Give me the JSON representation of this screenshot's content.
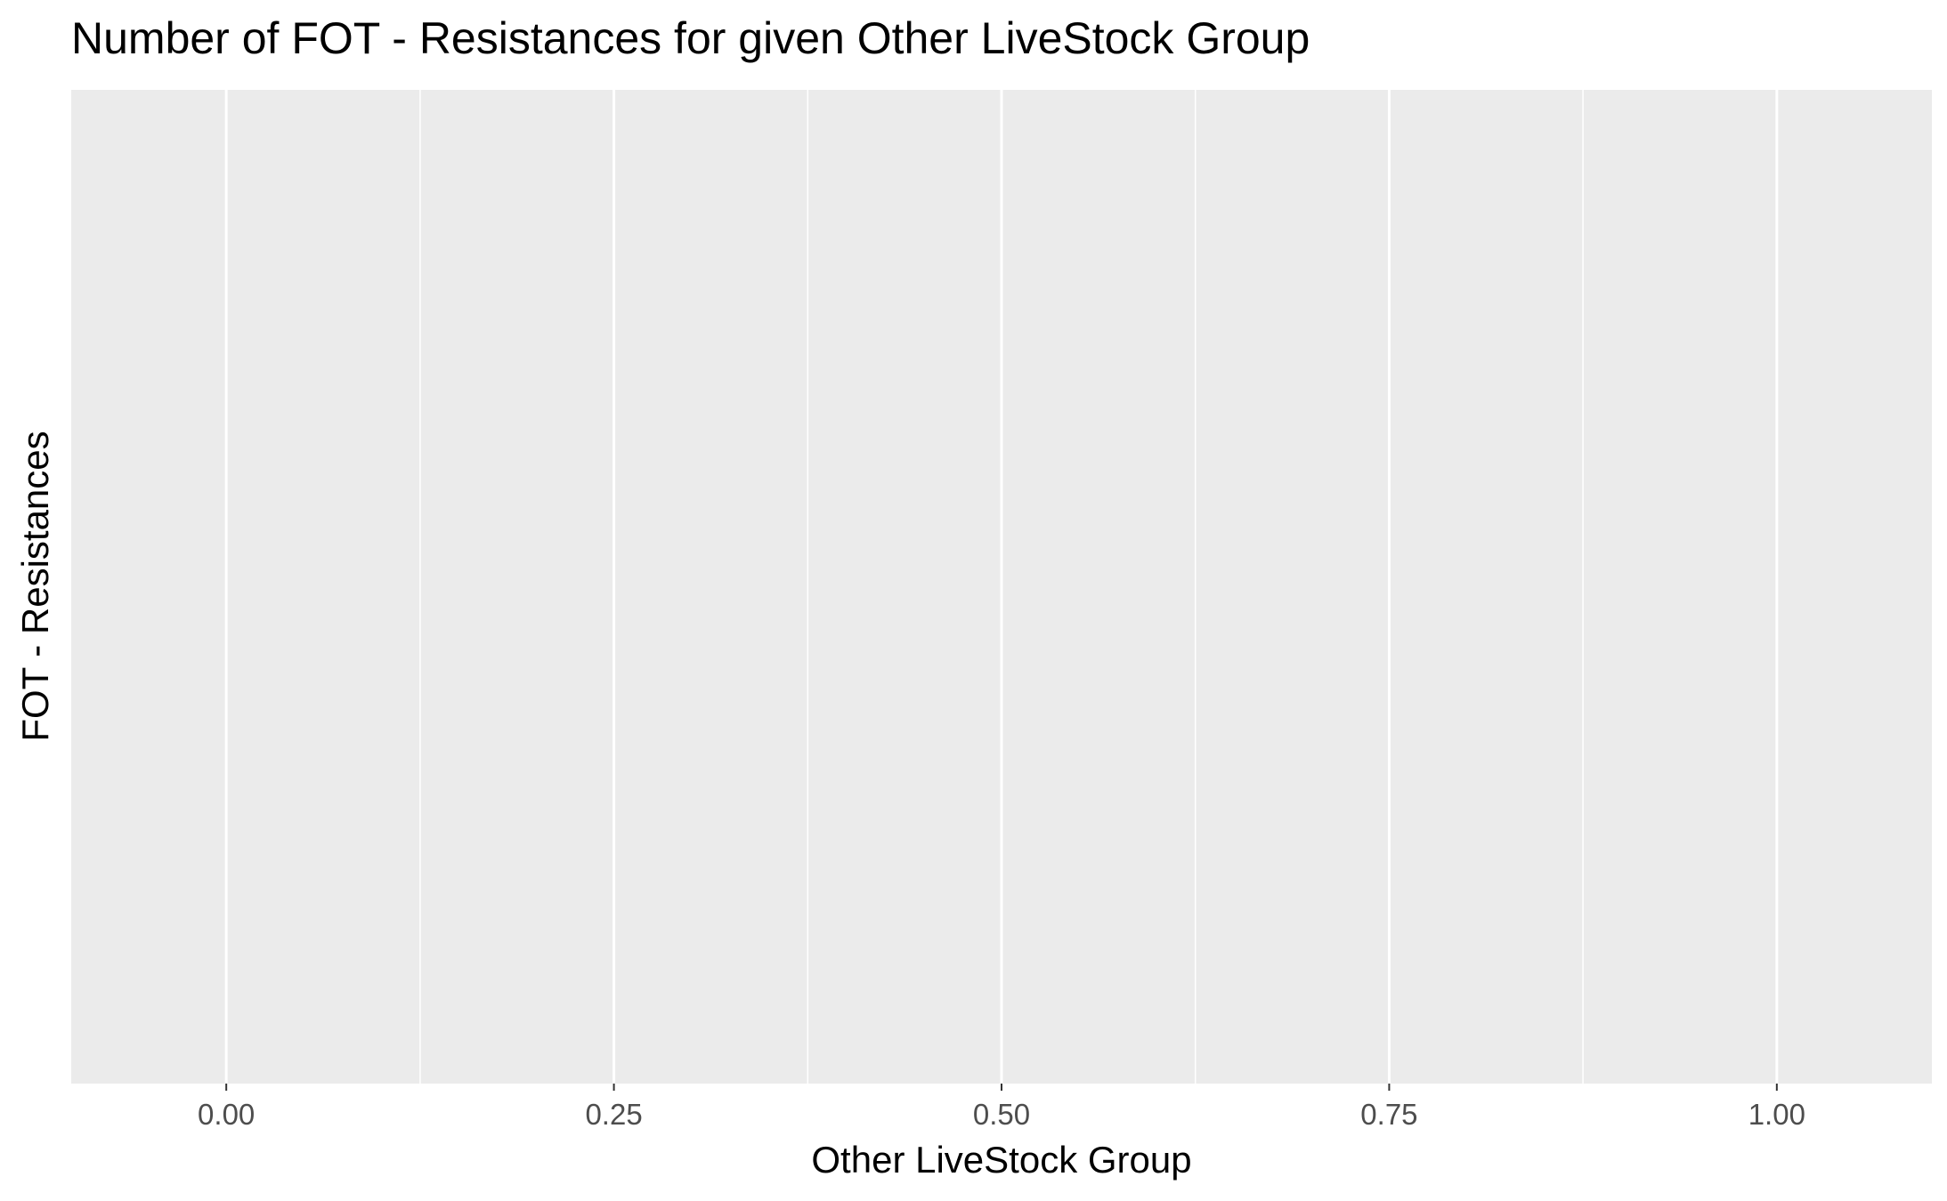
{
  "chart_data": {
    "type": "bar",
    "title": "Number of FOT - Resistances for given Other LiveStock Group",
    "xlabel": "Other LiveStock Group",
    "ylabel": "FOT - Resistances",
    "x_ticks": [
      0.0,
      0.25,
      0.5,
      0.75,
      1.0
    ],
    "x_tick_labels": [
      "0.00",
      "0.25",
      "0.50",
      "0.75",
      "1.00"
    ],
    "xlim": [
      -0.1,
      1.1
    ],
    "categories": [],
    "values": [],
    "grid": true,
    "panel_background": "#ebebeb",
    "gridline_color": "#ffffff"
  }
}
